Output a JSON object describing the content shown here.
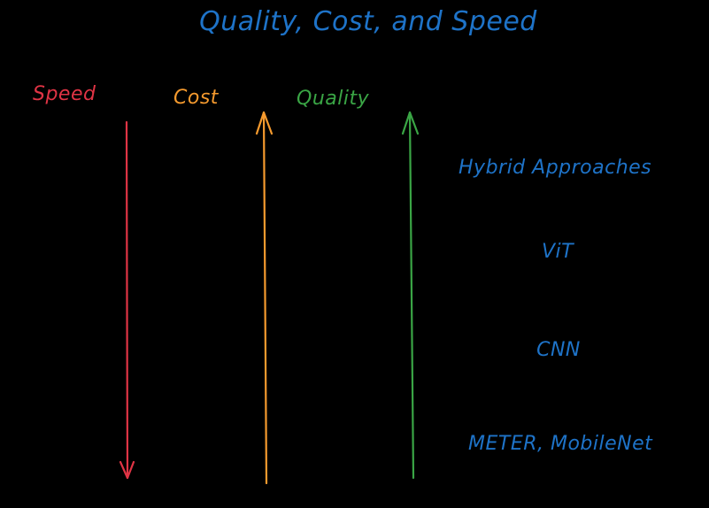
{
  "title": "Quality, Cost, and Speed",
  "axes": [
    {
      "name": "speed",
      "label": "Speed",
      "direction": "down",
      "color": "#e03445"
    },
    {
      "name": "cost",
      "label": "Cost",
      "direction": "up",
      "color": "#f59a2e"
    },
    {
      "name": "quality",
      "label": "Quality",
      "direction": "up",
      "color": "#3aa545"
    }
  ],
  "models": [
    "Hybrid Approaches",
    "ViT",
    "CNN",
    "METER, MobileNet"
  ],
  "colors": {
    "background": "#000000",
    "title": "#1e73c8",
    "models": "#1e73c8"
  }
}
